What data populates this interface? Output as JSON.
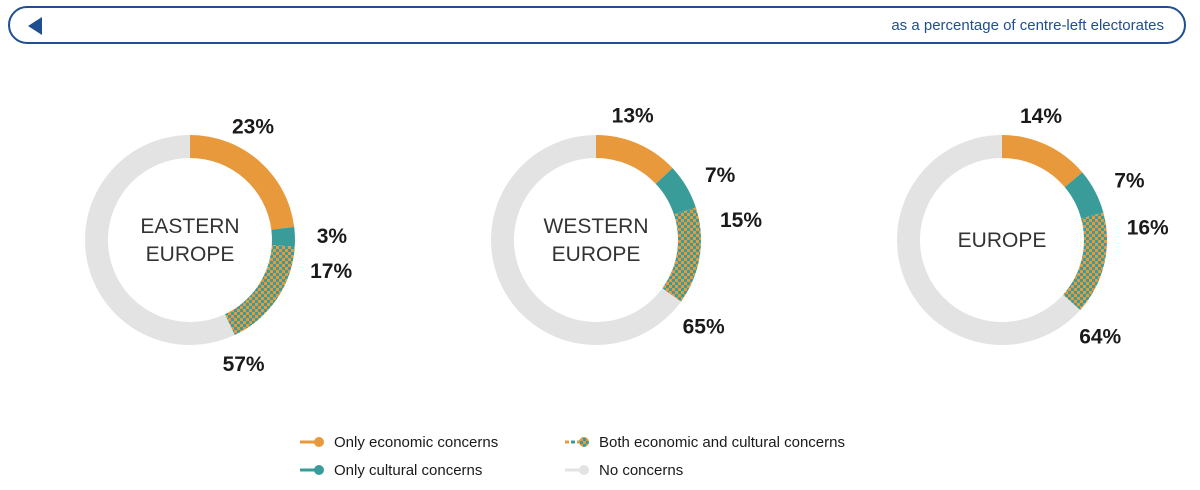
{
  "header": {
    "subtitle": "as a percentage of centre-left electorates"
  },
  "colors": {
    "economic": "#e8993c",
    "cultural": "#3a9c99",
    "none": "#e3e3e3",
    "frame": "#1f4e91"
  },
  "legend": {
    "items": [
      {
        "key": "economic",
        "label": "Only economic concerns"
      },
      {
        "key": "both",
        "label": "Both economic and cultural concerns"
      },
      {
        "key": "cultural",
        "label": "Only cultural concerns"
      },
      {
        "key": "none",
        "label": "No concerns"
      }
    ]
  },
  "chart_data": [
    {
      "type": "pie",
      "center_label": [
        "EASTERN",
        "EUROPE"
      ],
      "slices": [
        {
          "key": "economic",
          "value": 23,
          "label": "23%"
        },
        {
          "key": "cultural",
          "value": 3,
          "label": "3%"
        },
        {
          "key": "both",
          "value": 17,
          "label": "17%"
        },
        {
          "key": "none",
          "value": 57,
          "label": "57%"
        }
      ]
    },
    {
      "type": "pie",
      "center_label": [
        "WESTERN",
        "EUROPE"
      ],
      "slices": [
        {
          "key": "economic",
          "value": 13,
          "label": "13%"
        },
        {
          "key": "cultural",
          "value": 7,
          "label": "7%"
        },
        {
          "key": "both",
          "value": 15,
          "label": "15%"
        },
        {
          "key": "none",
          "value": 65,
          "label": "65%"
        }
      ]
    },
    {
      "type": "pie",
      "center_label": [
        "EUROPE"
      ],
      "slices": [
        {
          "key": "economic",
          "value": 14,
          "label": "14%"
        },
        {
          "key": "cultural",
          "value": 7,
          "label": "7%"
        },
        {
          "key": "both",
          "value": 16,
          "label": "16%"
        },
        {
          "key": "none",
          "value": 64,
          "label": "64%"
        }
      ]
    }
  ]
}
